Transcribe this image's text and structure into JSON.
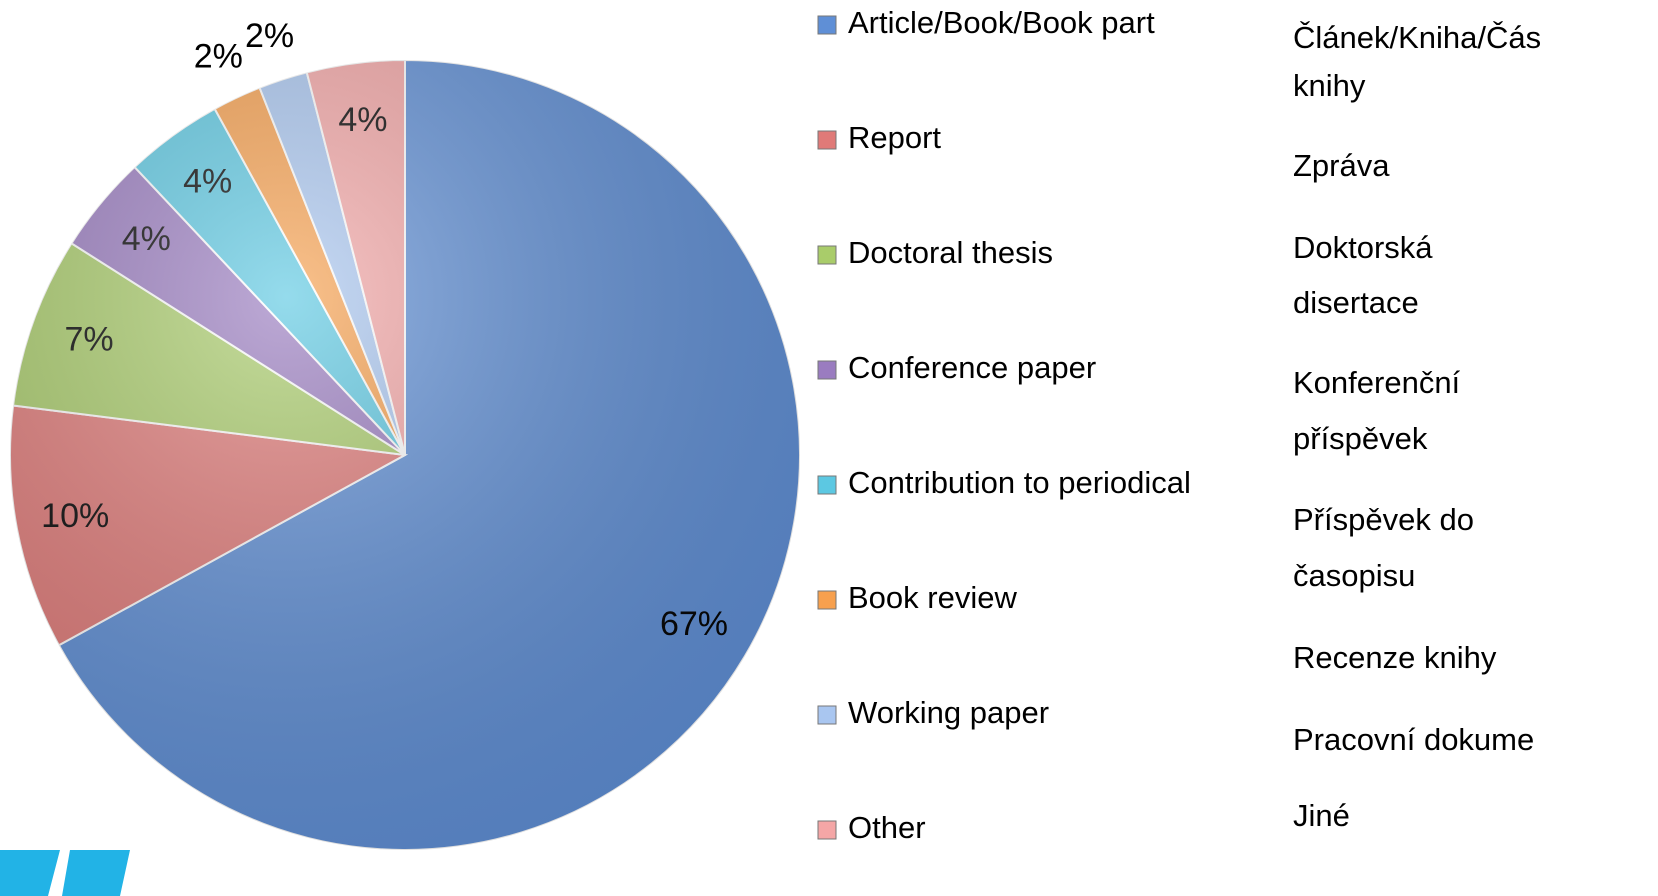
{
  "chart_data": {
    "type": "pie",
    "categories": [
      "Article/Book/Book part",
      "Report",
      "Doctoral thesis",
      "Conference paper",
      "Contribution to periodical",
      "Book review",
      "Working paper",
      "Other"
    ],
    "values": [
      67,
      10,
      7,
      4,
      4,
      2,
      2,
      4
    ],
    "value_labels": [
      "67%",
      "10%",
      "7%",
      "4%",
      "4%",
      "2%",
      "2%",
      "4%"
    ],
    "colors": [
      "#5f8fd6",
      "#e07a78",
      "#a9cc6a",
      "#9a7cc0",
      "#5cc8e2",
      "#f7a04e",
      "#a9c6f0",
      "#f4a6a6"
    ]
  },
  "translations": [
    [
      "Článek/Kniha/Čás",
      "knihy"
    ],
    [
      "Zpráva"
    ],
    [
      "Doktorská",
      "disertace"
    ],
    [
      "Konferenční",
      "příspěvek"
    ],
    [
      "Příspěvek do",
      "časopisu"
    ],
    [
      "Recenze knihy"
    ],
    [
      "Pracovní dokume"
    ],
    [
      "Jiné"
    ]
  ]
}
